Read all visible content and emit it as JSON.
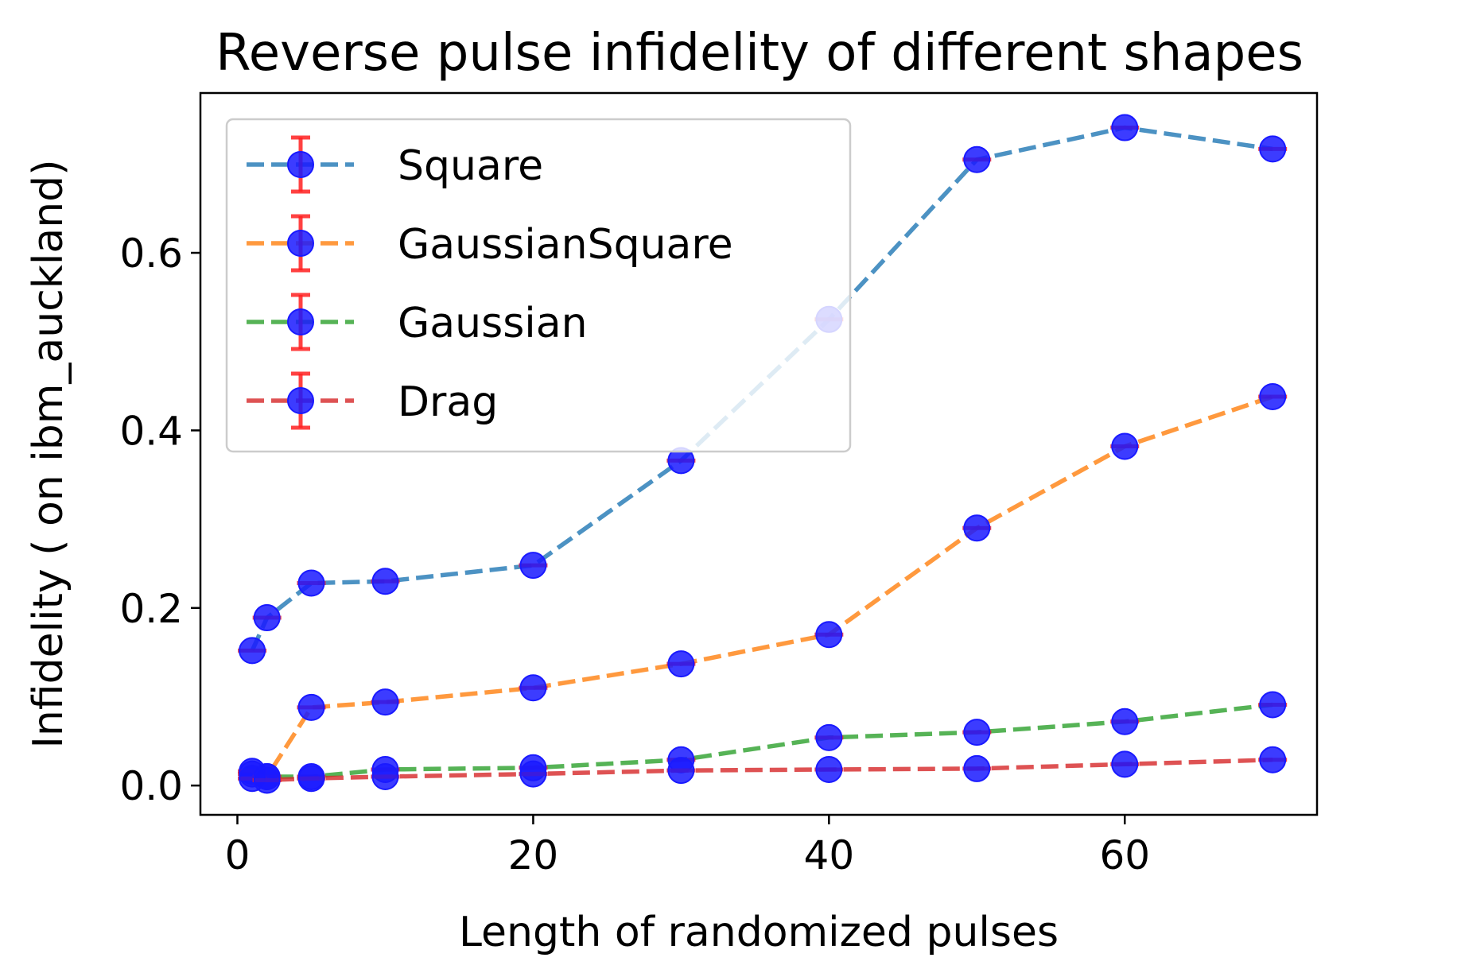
{
  "chart_data": {
    "type": "line",
    "title": "Reverse pulse infidelity of different shapes",
    "xlabel": "Length of randomized pulses",
    "ylabel": "Infidelity ( on ibm_auckland)",
    "xlim": [
      -2.5,
      73
    ],
    "ylim": [
      -0.033,
      0.78
    ],
    "xticks": [
      0,
      20,
      40,
      60
    ],
    "yticks": [
      0.0,
      0.2,
      0.4,
      0.6
    ],
    "xtick_labels": [
      "0",
      "20",
      "40",
      "60"
    ],
    "ytick_labels": [
      "0.0",
      "0.2",
      "0.4",
      "0.6"
    ],
    "grid": false,
    "legend_position": "upper-left",
    "x": [
      1,
      2,
      5,
      10,
      20,
      30,
      40,
      50,
      60,
      70
    ],
    "series": [
      {
        "name": "Square",
        "color": "#1f77b4",
        "values": [
          0.152,
          0.189,
          0.228,
          0.23,
          0.248,
          0.366,
          0.525,
          0.705,
          0.741,
          0.717
        ]
      },
      {
        "name": "GaussianSquare",
        "color": "#ff7f0e",
        "values": [
          0.013,
          0.01,
          0.088,
          0.094,
          0.11,
          0.137,
          0.17,
          0.29,
          0.382,
          0.438
        ]
      },
      {
        "name": "Gaussian",
        "color": "#2ca02c",
        "values": [
          0.016,
          0.01,
          0.01,
          0.018,
          0.02,
          0.029,
          0.054,
          0.06,
          0.072,
          0.091
        ]
      },
      {
        "name": "Drag",
        "color": "#d62728",
        "values": [
          0.008,
          0.006,
          0.008,
          0.01,
          0.013,
          0.017,
          0.018,
          0.019,
          0.024,
          0.029
        ]
      }
    ],
    "marker_color": "#1a1aff",
    "errorbar_color": "#ff2020"
  }
}
